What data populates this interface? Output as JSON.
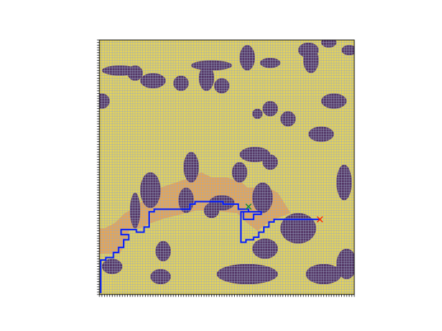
{
  "chart_data": {
    "type": "heatmap",
    "grid": {
      "rows": 100,
      "cols": 100,
      "visible": true
    },
    "xlim": [
      0,
      100
    ],
    "ylim": [
      0,
      100
    ],
    "tick_labels_visible": false,
    "colors": {
      "free": "#e3d25b",
      "obstacle": "#553666",
      "explored": "#e6a654",
      "grid_line": "#9aa7c2",
      "path": "#0018ff",
      "start_marker": "#ff2200",
      "goal_marker": "#128a3c"
    },
    "obstacles": [
      {
        "cx": 58,
        "cy": 92,
        "rx": 12,
        "ry": 4
      },
      {
        "cx": 24,
        "cy": 93,
        "rx": 4,
        "ry": 3
      },
      {
        "cx": 88,
        "cy": 92,
        "rx": 7,
        "ry": 4
      },
      {
        "cx": 5,
        "cy": 89,
        "rx": 4,
        "ry": 3
      },
      {
        "cx": 97,
        "cy": 88,
        "rx": 4,
        "ry": 6
      },
      {
        "cx": 65,
        "cy": 82,
        "rx": 5,
        "ry": 4
      },
      {
        "cx": 25,
        "cy": 83,
        "rx": 3,
        "ry": 4
      },
      {
        "cx": 78,
        "cy": 74,
        "rx": 7,
        "ry": 6
      },
      {
        "cx": 44,
        "cy": 67,
        "rx": 3,
        "ry": 3
      },
      {
        "cx": 48,
        "cy": 64,
        "rx": 5,
        "ry": 3
      },
      {
        "cx": 34,
        "cy": 63,
        "rx": 3,
        "ry": 5
      },
      {
        "cx": 64,
        "cy": 62,
        "rx": 4,
        "ry": 6
      },
      {
        "cx": 20,
        "cy": 59,
        "rx": 4,
        "ry": 7
      },
      {
        "cx": 14,
        "cy": 67,
        "rx": 2,
        "ry": 7
      },
      {
        "cx": 36,
        "cy": 50,
        "rx": 3,
        "ry": 6
      },
      {
        "cx": 61,
        "cy": 45,
        "rx": 6,
        "ry": 3
      },
      {
        "cx": 67,
        "cy": 48,
        "rx": 3,
        "ry": 3
      },
      {
        "cx": 55,
        "cy": 52,
        "rx": 3,
        "ry": 4
      },
      {
        "cx": 96,
        "cy": 56,
        "rx": 3,
        "ry": 7
      },
      {
        "cx": 87,
        "cy": 37,
        "rx": 5,
        "ry": 3
      },
      {
        "cx": 67,
        "cy": 27,
        "rx": 3,
        "ry": 3
      },
      {
        "cx": 62,
        "cy": 29,
        "rx": 2,
        "ry": 2
      },
      {
        "cx": 74,
        "cy": 31,
        "rx": 3,
        "ry": 3
      },
      {
        "cx": 92,
        "cy": 24,
        "rx": 5,
        "ry": 3
      },
      {
        "cx": 1,
        "cy": 24,
        "rx": 3,
        "ry": 3
      },
      {
        "cx": 42,
        "cy": 15,
        "rx": 3,
        "ry": 5
      },
      {
        "cx": 48,
        "cy": 18,
        "rx": 3,
        "ry": 3
      },
      {
        "cx": 32,
        "cy": 17,
        "rx": 3,
        "ry": 3
      },
      {
        "cx": 21,
        "cy": 16,
        "rx": 5,
        "ry": 3
      },
      {
        "cx": 14,
        "cy": 13,
        "rx": 3,
        "ry": 3
      },
      {
        "cx": 8,
        "cy": 12,
        "rx": 7,
        "ry": 2
      },
      {
        "cx": 44,
        "cy": 10,
        "rx": 8,
        "ry": 2
      },
      {
        "cx": 58,
        "cy": 7,
        "rx": 3,
        "ry": 5
      },
      {
        "cx": 67,
        "cy": 9,
        "rx": 4,
        "ry": 2
      },
      {
        "cx": 83,
        "cy": 8,
        "rx": 3,
        "ry": 5
      },
      {
        "cx": 82,
        "cy": 4,
        "rx": 4,
        "ry": 3
      },
      {
        "cx": 90,
        "cy": 1,
        "rx": 3,
        "ry": 2
      },
      {
        "cx": 98,
        "cy": 4,
        "rx": 3,
        "ry": 2
      }
    ],
    "explored_region": [
      [
        0,
        84
      ],
      [
        8,
        84
      ],
      [
        10,
        80
      ],
      [
        12,
        74
      ],
      [
        16,
        74
      ],
      [
        20,
        72
      ],
      [
        26,
        70
      ],
      [
        30,
        69
      ],
      [
        38,
        67
      ],
      [
        44,
        67
      ],
      [
        54,
        68
      ],
      [
        58,
        72
      ],
      [
        62,
        75
      ],
      [
        66,
        72
      ],
      [
        70,
        70
      ],
      [
        75,
        68
      ],
      [
        70,
        60
      ],
      [
        66,
        58
      ],
      [
        58,
        58
      ],
      [
        56,
        56
      ],
      [
        50,
        54
      ],
      [
        44,
        54
      ],
      [
        40,
        52
      ],
      [
        36,
        54
      ],
      [
        30,
        56
      ],
      [
        24,
        58
      ],
      [
        20,
        58
      ],
      [
        18,
        62
      ],
      [
        14,
        66
      ],
      [
        10,
        68
      ],
      [
        6,
        72
      ],
      [
        2,
        74
      ],
      [
        0,
        74
      ]
    ],
    "path": [
      [
        0.5,
        99.5
      ],
      [
        0.5,
        86.5
      ],
      [
        2.5,
        86.5
      ],
      [
        2.5,
        85.5
      ],
      [
        5.5,
        85.5
      ],
      [
        5.5,
        83.5
      ],
      [
        7.5,
        83.5
      ],
      [
        7.5,
        81.5
      ],
      [
        9.5,
        81.5
      ],
      [
        9.5,
        78.5
      ],
      [
        11.5,
        78.5
      ],
      [
        11.5,
        76.5
      ],
      [
        8.5,
        76.5
      ],
      [
        8.5,
        74.5
      ],
      [
        14.5,
        74.5
      ],
      [
        14.5,
        75.5
      ],
      [
        17.5,
        75.5
      ],
      [
        17.5,
        73.5
      ],
      [
        19.5,
        73.5
      ],
      [
        19.5,
        67.5
      ],
      [
        21.5,
        67.5
      ],
      [
        21.5,
        66.5
      ],
      [
        35.5,
        66.5
      ],
      [
        35.5,
        64.5
      ],
      [
        37.5,
        64.5
      ],
      [
        37.5,
        63.5
      ],
      [
        48.5,
        63.5
      ],
      [
        48.5,
        64.5
      ],
      [
        54.5,
        64.5
      ],
      [
        54.5,
        66.5
      ],
      [
        58.5,
        66.5
      ],
      [
        58.5,
        67.5
      ],
      [
        56.5,
        67.5
      ],
      [
        56.5,
        70.5
      ],
      [
        60.5,
        70.5
      ],
      [
        60.5,
        68.5
      ],
      [
        63.5,
        68.5
      ],
      [
        63.5,
        67.5
      ],
      [
        55.5,
        67.5
      ],
      [
        55.5,
        79.5
      ],
      [
        57.5,
        79.5
      ],
      [
        57.5,
        78.5
      ],
      [
        60.5,
        78.5
      ],
      [
        60.5,
        77.5
      ],
      [
        62.5,
        77.5
      ],
      [
        62.5,
        75.5
      ],
      [
        64.5,
        75.5
      ],
      [
        64.5,
        73.5
      ],
      [
        66.5,
        73.5
      ],
      [
        66.5,
        71.5
      ],
      [
        68.5,
        71.5
      ],
      [
        68.5,
        70.5
      ],
      [
        86.5,
        70.5
      ]
    ],
    "markers": [
      {
        "name": "start",
        "symbol": "x",
        "x": 86.5,
        "y": 70.5
      },
      {
        "name": "goal",
        "symbol": "x",
        "x": 58.5,
        "y": 65.5
      }
    ]
  }
}
